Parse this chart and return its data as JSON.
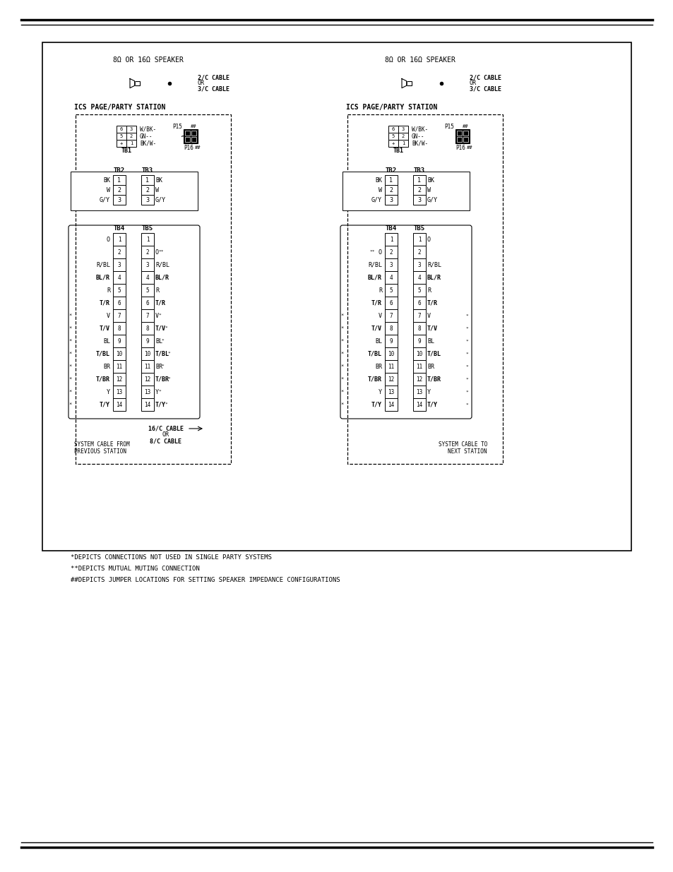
{
  "bg_color": "#ffffff",
  "border_color": "#000000",
  "line_color": "#000000",
  "dashed_color": "#555555",
  "title_top": "8Ω OR 16Ω SPEAKER",
  "title_top2": "8Ω OR 16Ω SPEAKER",
  "station_label": "ICS PAGE/PARTY STATION",
  "cable_label": "2/C CABLE\nOR\n3/C CABLE",
  "tb_labels_left": [
    "O",
    "",
    "R/BL",
    "BL/R",
    "R",
    "T/R",
    "V",
    "T/V",
    "BL",
    "T/BL",
    "BR",
    "T/BR",
    "Y",
    "T/Y"
  ],
  "tb_labels_right_tb5": [
    "O**",
    "",
    "R/BL",
    "BL/R",
    "R",
    "T/R",
    "V*",
    "T/V*",
    "BL*",
    "T/BL*",
    "BR*",
    "T/BR*",
    "Y*",
    "T/Y*"
  ],
  "tb2_labels_left": [
    "BK",
    "W",
    "G/Y"
  ],
  "tb3_labels_right": [
    "BK",
    "W",
    "G/Y"
  ],
  "tb1_labels": [
    "W/BK-",
    "GN--",
    "BK/W-"
  ],
  "footer_notes": [
    "*DEPICTS CONNECTIONS NOT USED IN SINGLE PARTY SYSTEMS",
    "**DEPICTS MUTUAL MUTING CONNECTION",
    "##DEPICTS JUMPER LOCATIONS FOR SETTING SPEAKER IMPEDANCE CONFIGURATIONS"
  ],
  "system_cable_left": "SYSTEM CABLE FROM\nPREVIOUS STATION",
  "system_cable_right": "SYSTEM CABLE TO\nNEXT STATION",
  "cable_bottom_label": "16/C CABLE\nOR\n8/C CABLE"
}
